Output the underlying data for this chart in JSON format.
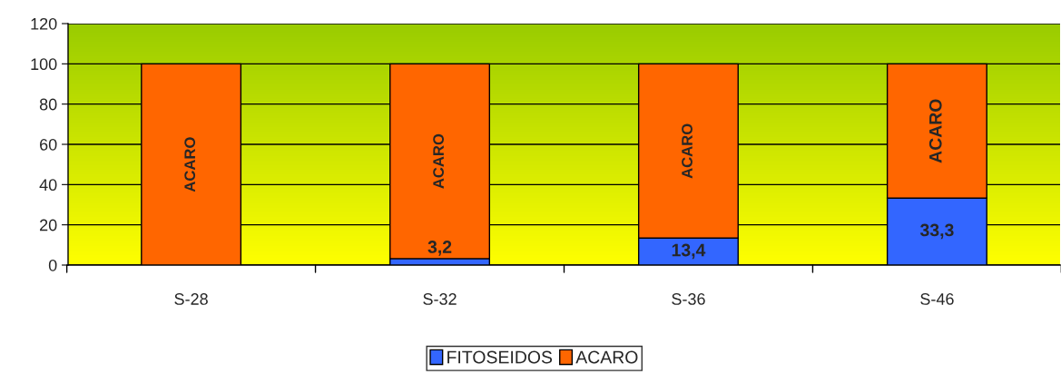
{
  "chart_data": {
    "type": "bar",
    "stacked": true,
    "categories": [
      "S-28",
      "S-32",
      "S-36",
      "S-46"
    ],
    "series": [
      {
        "name": "FITOSEIDOS",
        "color": "#3366ff",
        "values": [
          0,
          3.2,
          13.4,
          33.3
        ],
        "value_labels": [
          null,
          "3,2",
          "13,4",
          "33,3"
        ]
      },
      {
        "name": "ACARO",
        "color": "#ff6600",
        "values": [
          100,
          96.8,
          86.6,
          66.7
        ],
        "value_labels": [
          "ACARO",
          "ACARO",
          "ACARO",
          "ACARO"
        ]
      }
    ],
    "ylim": [
      0,
      120
    ],
    "yticks": [
      0,
      20,
      40,
      60,
      80,
      100,
      120
    ],
    "grid": "y",
    "legend": "bottom"
  }
}
